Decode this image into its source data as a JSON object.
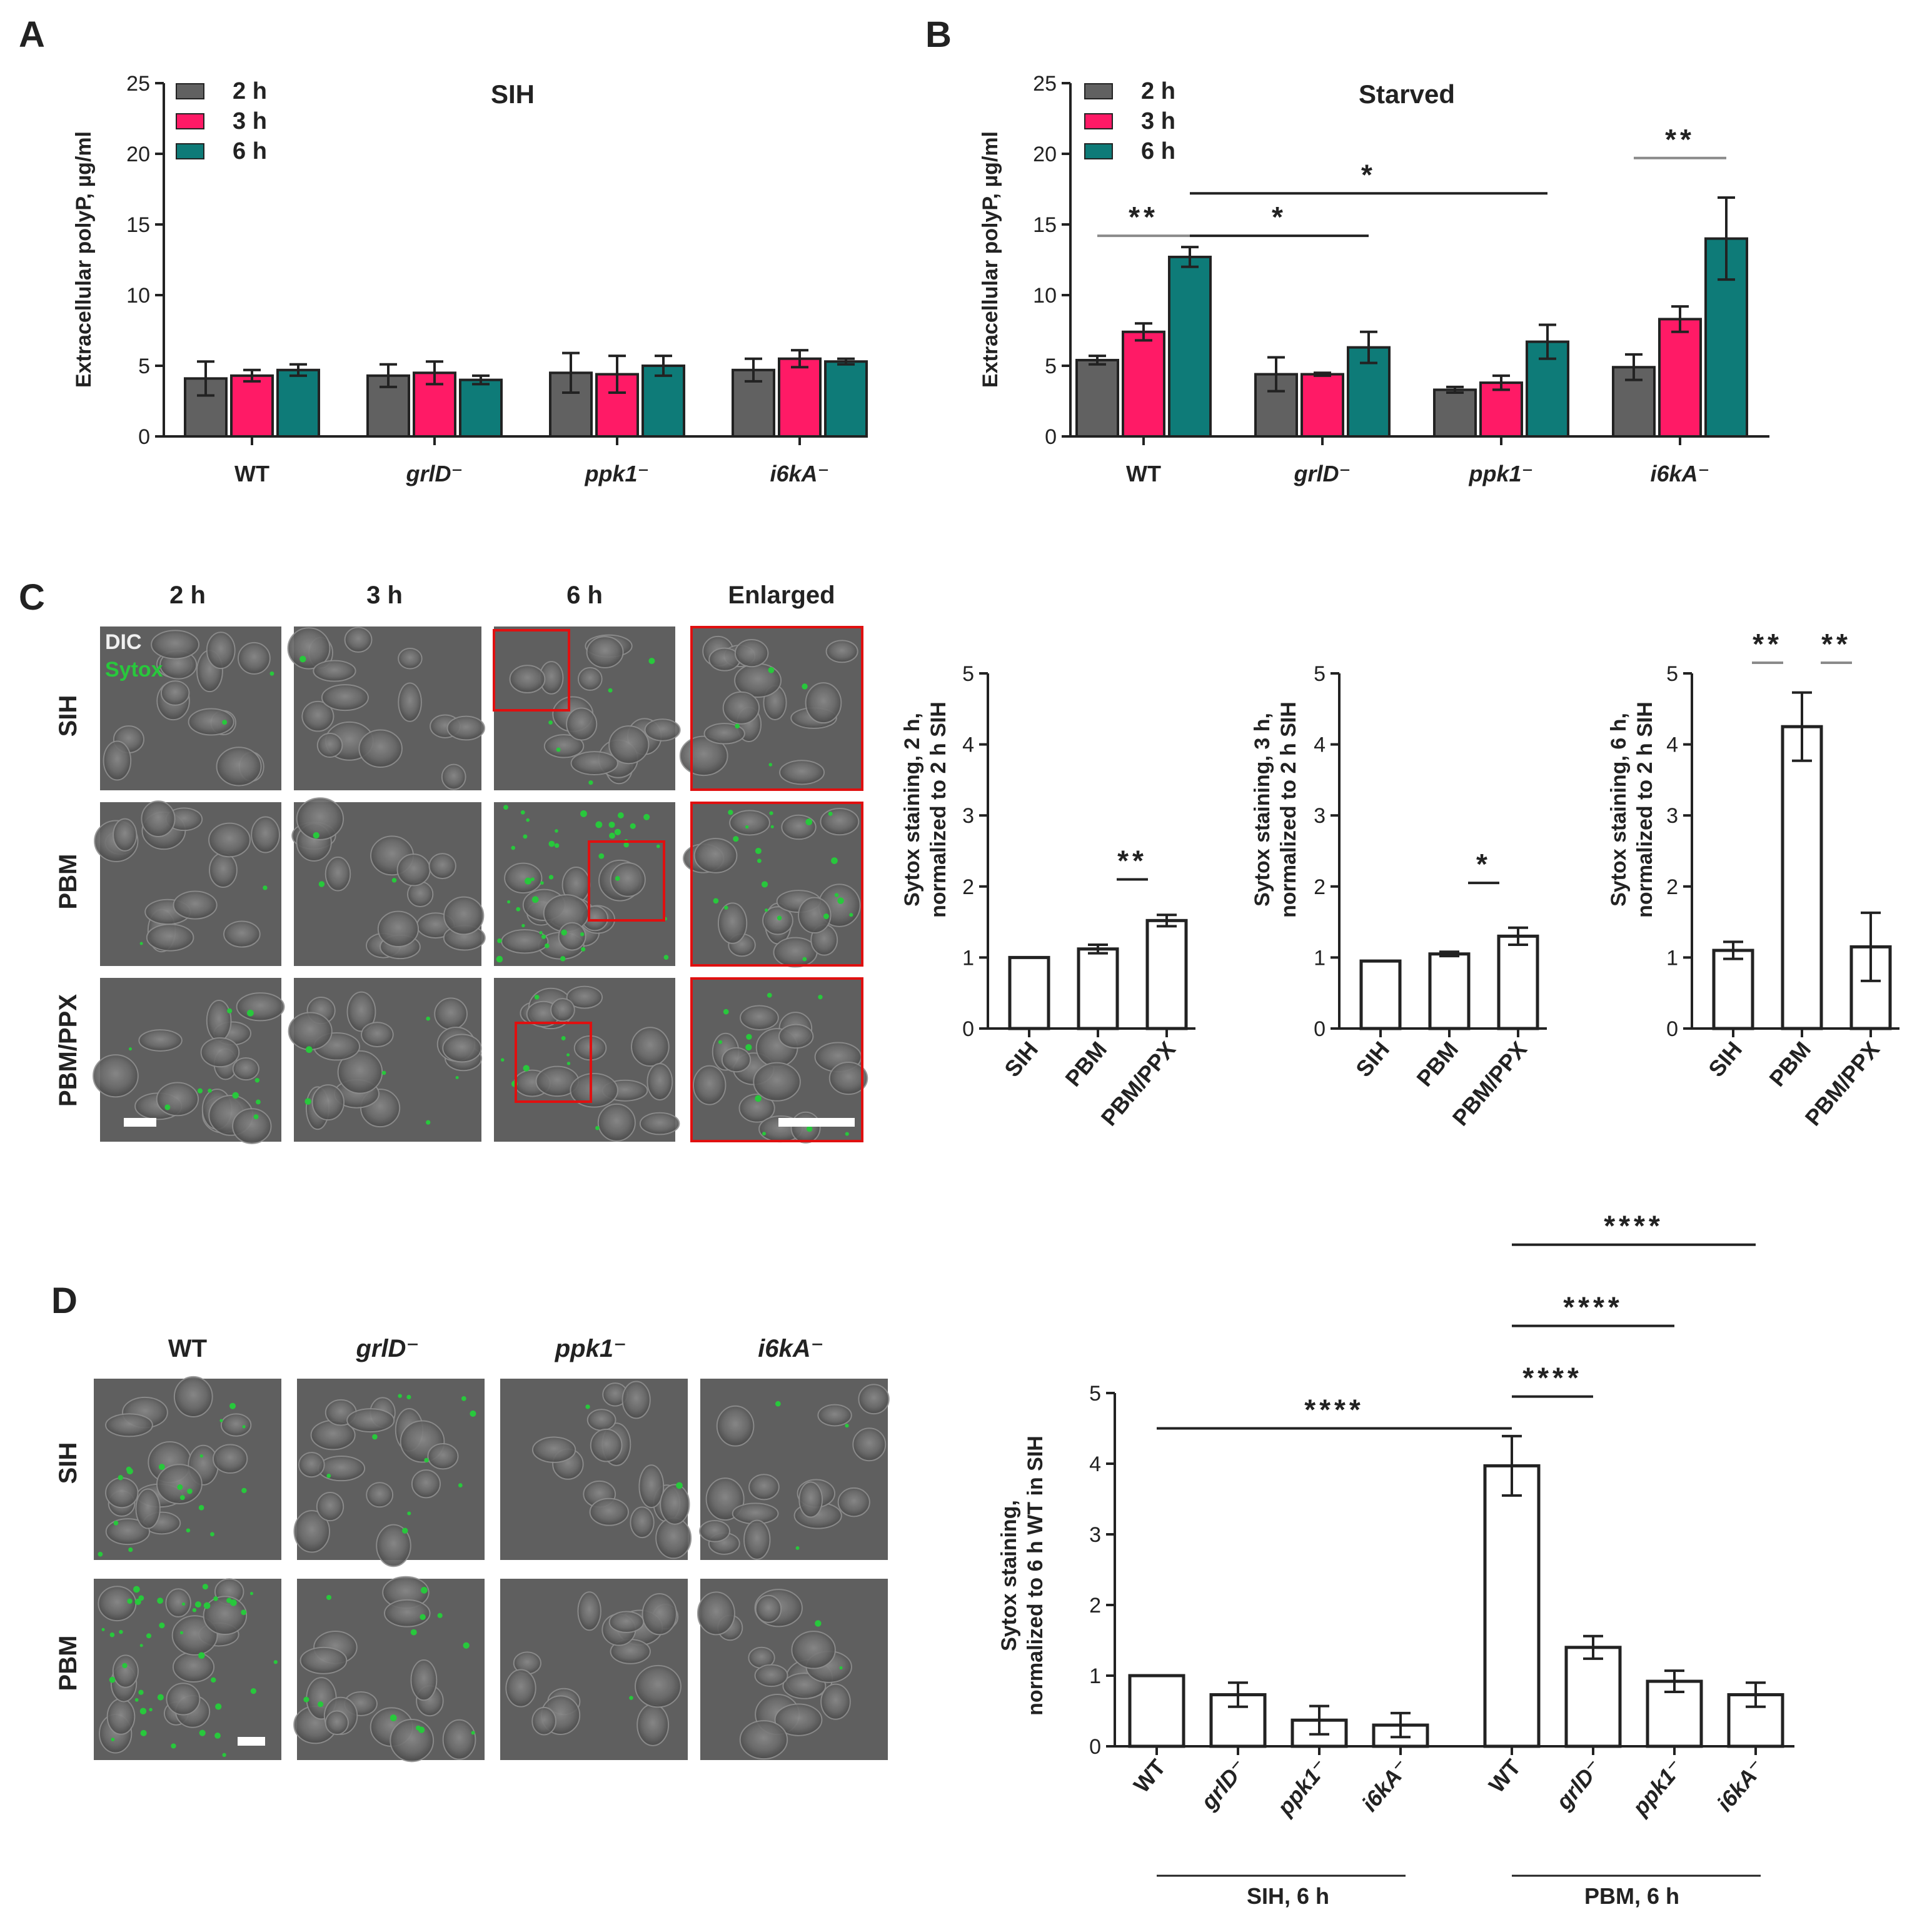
{
  "labels": {
    "A": "A",
    "B": "B",
    "C": "C",
    "D": "D"
  },
  "colors": {
    "h2": "#616161",
    "h3": "#ff1a66",
    "h6": "#0e7b78",
    "axis": "#222222",
    "sytox": "#28c83c",
    "box": "#e01010"
  },
  "microscopy_c": {
    "columns": [
      "2 h",
      "3 h",
      "6 h",
      "Enlarged"
    ],
    "rows": [
      "SIH",
      "PBM",
      "PBM/PPX"
    ],
    "overlay_labels": [
      "DIC",
      "Sytox"
    ]
  },
  "microscopy_d": {
    "columns": [
      "WT",
      "grlD⁻",
      "ppk1⁻",
      "i6kA⁻"
    ],
    "rows": [
      "SIH",
      "PBM"
    ]
  },
  "chart_data": [
    {
      "type": "bar",
      "title": "SIH",
      "ylabel": "Extracellular polyP, µg/ml",
      "categories": [
        "WT",
        "grlD⁻",
        "ppk1⁻",
        "i6kA⁻"
      ],
      "series": [
        {
          "name": "2 h",
          "values": [
            4.1,
            4.3,
            4.5,
            4.7
          ],
          "errors": [
            1.2,
            0.8,
            1.4,
            0.8
          ]
        },
        {
          "name": "3 h",
          "values": [
            4.3,
            4.5,
            4.4,
            5.5
          ],
          "errors": [
            0.4,
            0.8,
            1.3,
            0.6
          ]
        },
        {
          "name": "6 h",
          "values": [
            4.7,
            4.0,
            5.0,
            5.3
          ],
          "errors": [
            0.4,
            0.3,
            0.7,
            0.2
          ]
        }
      ],
      "ylim": [
        0,
        25
      ],
      "yticks": [
        0,
        5,
        10,
        15,
        20,
        25
      ],
      "significance": []
    },
    {
      "type": "bar",
      "title": "Starved",
      "ylabel": "Extracellular polyP, µg/ml",
      "categories": [
        "WT",
        "grlD⁻",
        "ppk1⁻",
        "i6kA⁻"
      ],
      "series": [
        {
          "name": "2 h",
          "values": [
            5.4,
            4.4,
            3.3,
            4.9
          ],
          "errors": [
            0.3,
            1.2,
            0.2,
            0.9
          ]
        },
        {
          "name": "3 h",
          "values": [
            7.4,
            4.4,
            3.8,
            8.3
          ],
          "errors": [
            0.6,
            0.1,
            0.5,
            0.9
          ]
        },
        {
          "name": "6 h",
          "values": [
            12.7,
            6.3,
            6.7,
            14.0
          ],
          "errors": [
            0.7,
            1.1,
            1.2,
            2.9
          ]
        }
      ],
      "ylim": [
        0,
        25
      ],
      "yticks": [
        0,
        5,
        10,
        15,
        20,
        25
      ],
      "significance": [
        {
          "from": [
            0,
            0
          ],
          "to": [
            0,
            2
          ],
          "y": 14.2,
          "label": "**",
          "gray": true
        },
        {
          "from": [
            0,
            2
          ],
          "to": [
            1,
            2
          ],
          "y": 14.2,
          "label": "*",
          "gray": false
        },
        {
          "from": [
            0,
            2
          ],
          "to": [
            2,
            2
          ],
          "y": 17.2,
          "label": "*",
          "gray": false
        },
        {
          "from": [
            3,
            0
          ],
          "to": [
            3,
            2
          ],
          "y": 19.7,
          "label": "**",
          "gray": true
        }
      ]
    },
    {
      "type": "bar",
      "ylabel_lines": [
        "Sytox staining, 2 h,",
        "normalized to 2 h SIH"
      ],
      "categories": [
        "SIH",
        "PBM",
        "PBM/PPX"
      ],
      "values": [
        1.0,
        1.12,
        1.52
      ],
      "errors": [
        0,
        0.06,
        0.08
      ],
      "ylim": [
        0,
        5
      ],
      "yticks": [
        0,
        1,
        2,
        3,
        4,
        5
      ],
      "significance": [
        {
          "from": 1,
          "to": 2,
          "y": 2.1,
          "label": "**",
          "gray": false
        }
      ]
    },
    {
      "type": "bar",
      "ylabel_lines": [
        "Sytox staining, 3 h,",
        "normalized to 2 h SIH"
      ],
      "categories": [
        "SIH",
        "PBM",
        "PBM/PPX"
      ],
      "values": [
        0.95,
        1.05,
        1.3
      ],
      "errors": [
        0,
        0.03,
        0.12
      ],
      "ylim": [
        0,
        5
      ],
      "yticks": [
        0,
        1,
        2,
        3,
        4,
        5
      ],
      "significance": [
        {
          "from": 1,
          "to": 2,
          "y": 2.05,
          "label": "*",
          "gray": false
        }
      ]
    },
    {
      "type": "bar",
      "ylabel_lines": [
        "Sytox staining, 6 h,",
        "normalized to 2 h SIH"
      ],
      "categories": [
        "SIH",
        "PBM",
        "PBM/PPX"
      ],
      "values": [
        1.1,
        4.25,
        1.15
      ],
      "errors": [
        0.12,
        0.48,
        0.48
      ],
      "ylim": [
        0,
        5
      ],
      "yticks": [
        0,
        1,
        2,
        3,
        4,
        5
      ],
      "significance": [
        {
          "from": 0,
          "to": 1,
          "y": 5.15,
          "label": "**",
          "gray": true
        },
        {
          "from": 1,
          "to": 2,
          "y": 5.15,
          "label": "**",
          "gray": true
        }
      ]
    },
    {
      "type": "bar",
      "ylabel_lines": [
        "Sytox staining,",
        "normalized to 6 h WT in SIH"
      ],
      "categories": [
        "WT",
        "grlD⁻",
        "ppk1⁻",
        "i6kA⁻",
        "WT",
        "grlD⁻",
        "ppk1⁻",
        "i6kA⁻"
      ],
      "values": [
        1.0,
        0.73,
        0.37,
        0.3,
        3.97,
        1.4,
        0.92,
        0.73
      ],
      "errors": [
        0,
        0.17,
        0.2,
        0.17,
        0.42,
        0.16,
        0.15,
        0.17
      ],
      "group_labels": [
        "SIH, 6 h",
        "PBM, 6 h"
      ],
      "ylim": [
        0,
        5
      ],
      "yticks": [
        0,
        1,
        2,
        3,
        4,
        5
      ],
      "significance": [
        {
          "from": 0,
          "to": 4,
          "y": 4.5,
          "label": "****",
          "gray": false
        },
        {
          "from": 4,
          "to": 5,
          "y": 4.95,
          "label": "****",
          "gray": false
        },
        {
          "from": 4,
          "to": 6,
          "y": 5.95,
          "label": "****",
          "gray": false
        },
        {
          "from": 4,
          "to": 7,
          "y": 7.1,
          "label": "****",
          "gray": false
        }
      ]
    }
  ]
}
